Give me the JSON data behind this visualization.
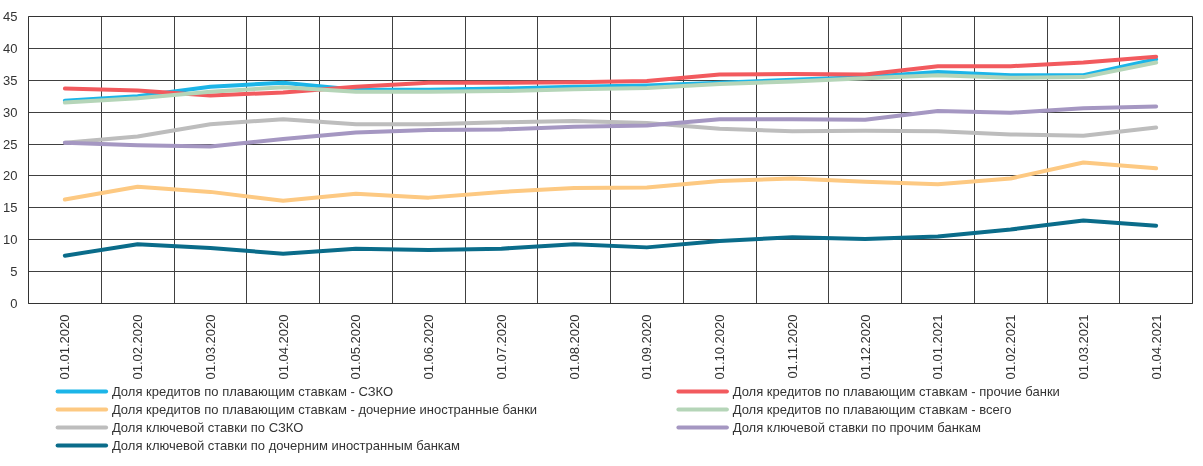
{
  "chart_data": {
    "type": "line",
    "categories": [
      "01.01.2020",
      "01.02.2020",
      "01.03.2020",
      "01.04.2020",
      "01.05.2020",
      "01.06.2020",
      "01.07.2020",
      "01.08.2020",
      "01.09.2020",
      "01.10.2020",
      "01.11.2020",
      "01.12.2020",
      "01.01.2021",
      "01.02.2021",
      "01.03.2021",
      "01.04.2021"
    ],
    "series": [
      {
        "name": "Доля кредитов по плавающим ставкам - СЗКО",
        "color": "#1cb5e8",
        "values": [
          31.8,
          32.5,
          34.0,
          34.6,
          33.5,
          33.5,
          33.7,
          34.0,
          34.2,
          34.6,
          35.1,
          35.5,
          36.3,
          35.8,
          35.8,
          38.3
        ]
      },
      {
        "name": "Доля кредитов по плавающим ставкам - дочерние иностранные банки",
        "color": "#fdc982",
        "values": [
          16.3,
          18.3,
          17.5,
          16.1,
          17.2,
          16.6,
          17.5,
          18.1,
          18.2,
          19.2,
          19.6,
          19.1,
          18.7,
          19.6,
          22.1,
          21.2
        ]
      },
      {
        "name": "Доля ключевой ставки по СЗКО",
        "color": "#bdbdbd",
        "values": [
          25.2,
          26.2,
          28.1,
          28.9,
          28.1,
          28.1,
          28.4,
          28.6,
          28.3,
          27.4,
          27.0,
          27.1,
          27.0,
          26.5,
          26.3,
          27.6
        ]
      },
      {
        "name": "Доля ключевой ставки по дочерним иностранным банкам",
        "color": "#0a6c8a",
        "values": [
          7.5,
          9.3,
          8.7,
          7.8,
          8.6,
          8.4,
          8.6,
          9.3,
          8.8,
          9.8,
          10.4,
          10.1,
          10.5,
          11.6,
          13.0,
          12.2
        ]
      },
      {
        "name": "Доля кредитов по плавающим ставкам - прочие банки",
        "color": "#f25a5e",
        "values": [
          33.7,
          33.4,
          32.6,
          33.1,
          34.0,
          34.6,
          34.6,
          34.7,
          34.9,
          35.9,
          36.0,
          35.9,
          37.2,
          37.2,
          37.8,
          38.7
        ]
      },
      {
        "name": "Доля кредитов по плавающим ставкам - всего",
        "color": "#b5d5b8",
        "values": [
          31.5,
          32.2,
          33.2,
          33.9,
          33.2,
          33.2,
          33.3,
          33.6,
          33.8,
          34.4,
          34.8,
          35.3,
          35.8,
          35.4,
          35.5,
          37.8
        ]
      },
      {
        "name": "Доля ключевой ставки по прочим банкам",
        "color": "#a597c2",
        "values": [
          25.2,
          24.8,
          24.6,
          25.8,
          26.8,
          27.2,
          27.3,
          27.7,
          27.9,
          28.9,
          28.9,
          28.8,
          30.2,
          29.9,
          30.6,
          30.9
        ]
      }
    ],
    "ylim": [
      0,
      45
    ],
    "yticks": [
      0,
      5,
      10,
      15,
      20,
      25,
      30,
      35,
      40,
      45
    ],
    "grid": true,
    "legend": "bottom",
    "marker": "none",
    "line_style": "solid"
  }
}
